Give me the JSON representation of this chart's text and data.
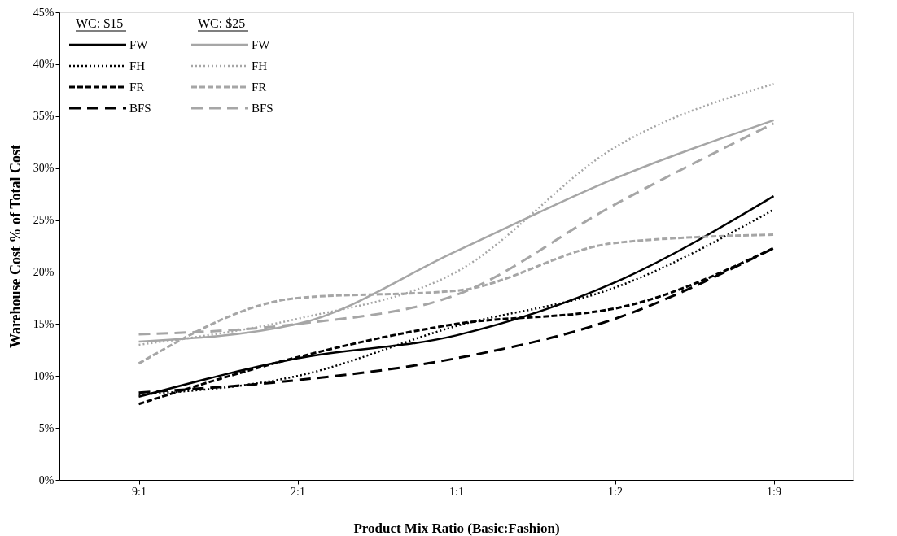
{
  "chart_data": {
    "type": "line",
    "xlabel": "Product Mix Ratio (Basic:Fashion)",
    "ylabel": "Warehouse Cost % of Total Cost",
    "categories": [
      "9:1",
      "2:1",
      "1:1",
      "1:2",
      "1:9"
    ],
    "ylim": [
      0,
      45
    ],
    "yticks": [
      {
        "value": 0,
        "label": "0%"
      },
      {
        "value": 5,
        "label": "5%"
      },
      {
        "value": 10,
        "label": "10%"
      },
      {
        "value": 15,
        "label": "15%"
      },
      {
        "value": 20,
        "label": "20%"
      },
      {
        "value": 25,
        "label": "25%"
      },
      {
        "value": 30,
        "label": "30%"
      },
      {
        "value": 35,
        "label": "35%"
      },
      {
        "value": 40,
        "label": "40%"
      },
      {
        "value": 45,
        "label": "45%"
      }
    ],
    "grid": false,
    "legend": "top left",
    "annotations": [
      "WC: $15",
      "WC: $25"
    ],
    "series": [
      {
        "name": "FW",
        "color": "#000000",
        "line_style": "solid",
        "values": [
          8.0,
          11.7,
          13.9,
          19.0,
          27.3
        ]
      },
      {
        "name": "FH",
        "color": "#000000",
        "line_style": "dotted",
        "values": [
          8.2,
          10.0,
          14.8,
          18.5,
          26.0
        ]
      },
      {
        "name": "FR",
        "color": "#000000",
        "line_style": "dashed",
        "values": [
          7.3,
          11.8,
          15.0,
          16.5,
          22.3
        ]
      },
      {
        "name": "BFS",
        "color": "#000000",
        "line_style": "longdashed",
        "values": [
          8.4,
          9.6,
          11.7,
          15.5,
          22.3
        ]
      },
      {
        "name": "FW",
        "color": "#a6a6a6",
        "line_style": "solid",
        "values": [
          13.3,
          15.0,
          22.0,
          29.0,
          34.6
        ]
      },
      {
        "name": "FH",
        "color": "#a6a6a6",
        "line_style": "dotted",
        "values": [
          13.0,
          15.5,
          20.0,
          32.0,
          38.1
        ]
      },
      {
        "name": "FR",
        "color": "#a6a6a6",
        "line_style": "dashed",
        "values": [
          11.2,
          17.5,
          18.2,
          22.8,
          23.6
        ]
      },
      {
        "name": "BFS",
        "color": "#a6a6a6",
        "line_style": "longdashed",
        "values": [
          14.0,
          15.0,
          17.8,
          26.5,
          34.3
        ]
      }
    ]
  }
}
